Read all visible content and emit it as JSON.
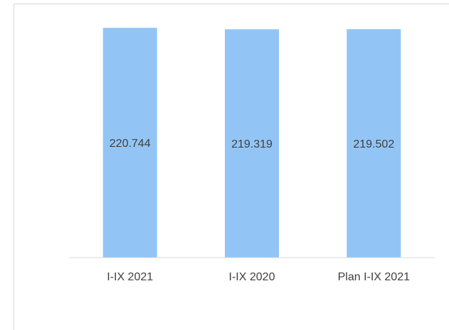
{
  "chart_data": {
    "type": "bar",
    "categories": [
      "I-IX 2021",
      "I-IX 2020",
      "Plan I-IX 2021"
    ],
    "values": [
      220.744,
      219.319,
      219.502
    ],
    "value_labels": [
      "220.744",
      "219.319",
      "219.502"
    ],
    "title": "",
    "xlabel": "",
    "ylabel": "",
    "ylim": [
      0,
      240
    ],
    "grid": false,
    "legend": "none",
    "bar_color": "#92c5f5",
    "axis_color": "#d9d9d9",
    "text_color": "#404040"
  }
}
